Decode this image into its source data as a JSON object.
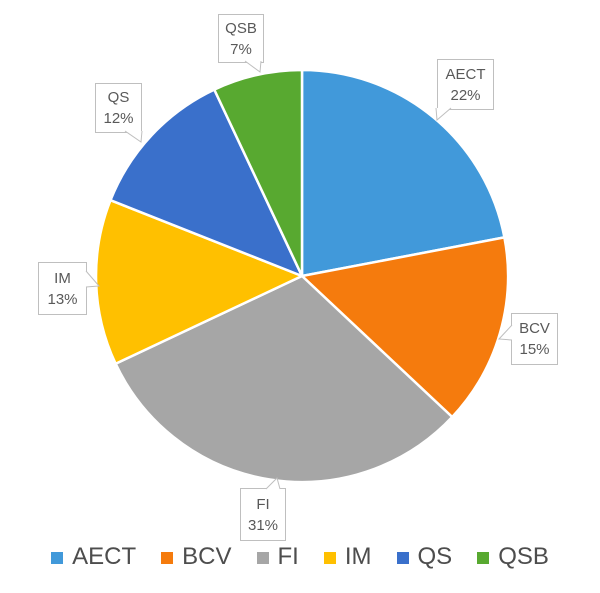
{
  "chart_data": {
    "type": "pie",
    "labels": [
      "AECT",
      "BCV",
      "FI",
      "IM",
      "QS",
      "QSB"
    ],
    "values": [
      22,
      15,
      31,
      13,
      12,
      7
    ],
    "percent_labels": [
      "22%",
      "15%",
      "31%",
      "13%",
      "12%",
      "7%"
    ],
    "colors": [
      "#4199da",
      "#f57b0d",
      "#a6a6a6",
      "#ffc000",
      "#3a70cb",
      "#58a930"
    ],
    "title": "",
    "start_angle_deg": 0,
    "direction": "clockwise",
    "slice_border_color": "#ffffff",
    "data_label_style": {
      "text_color": "#595959",
      "box_fill": "#ffffff",
      "box_border": "#bfbfbf"
    },
    "legend_position": "bottom",
    "legend_text_color": "#4d4d4d"
  },
  "callouts": {
    "aect": {
      "title": "AECT",
      "value": "22%"
    },
    "bcv": {
      "title": "BCV",
      "value": "15%"
    },
    "fi": {
      "title": "FI",
      "value": "31%"
    },
    "im": {
      "title": "IM",
      "value": "13%"
    },
    "qs": {
      "title": "QS",
      "value": "12%"
    },
    "qsb": {
      "title": "QSB",
      "value": "7%"
    }
  },
  "legend": {
    "items": [
      {
        "label": "AECT"
      },
      {
        "label": "BCV"
      },
      {
        "label": "FI"
      },
      {
        "label": "IM"
      },
      {
        "label": "QS"
      },
      {
        "label": "QSB"
      }
    ]
  }
}
